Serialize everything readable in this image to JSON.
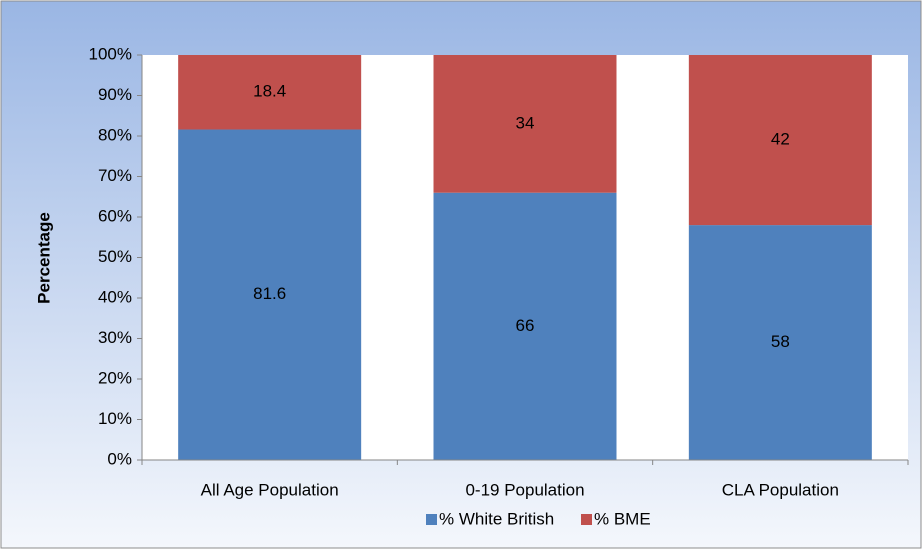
{
  "chart_data": {
    "type": "stacked_bar",
    "y_label": "Percentage",
    "categories": [
      "All Age Population",
      "0-19 Population",
      "CLA Population"
    ],
    "series": [
      {
        "name": "% White British",
        "color": "#4f81bd",
        "values": [
          81.6,
          66,
          58
        ]
      },
      {
        "name": "% BME",
        "color": "#c0504d",
        "values": [
          18.4,
          34,
          42
        ]
      }
    ],
    "ylim": [
      0,
      100
    ],
    "yticks": [
      {
        "value": 0,
        "label": "0%"
      },
      {
        "value": 10,
        "label": "10%"
      },
      {
        "value": 20,
        "label": "20%"
      },
      {
        "value": 30,
        "label": "30%"
      },
      {
        "value": 40,
        "label": "40%"
      },
      {
        "value": 50,
        "label": "50%"
      },
      {
        "value": 60,
        "label": "60%"
      },
      {
        "value": 70,
        "label": "70%"
      },
      {
        "value": 80,
        "label": "80%"
      },
      {
        "value": 90,
        "label": "90%"
      },
      {
        "value": 100,
        "label": "100%"
      }
    ],
    "legend": "bottom"
  }
}
